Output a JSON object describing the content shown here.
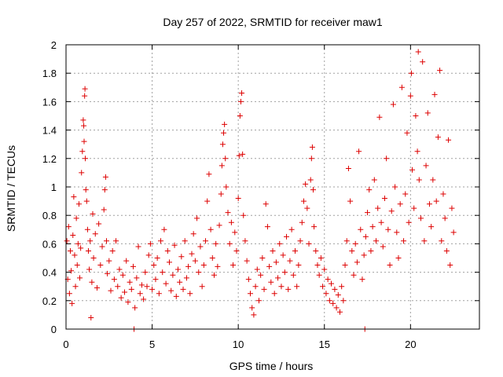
{
  "chart_data": {
    "type": "scatter",
    "title": "Day 257 of 2022, SRMTID for receiver maw1",
    "xlabel": "GPS time / hours",
    "ylabel": "SRMTID / TECUs",
    "xlim": [
      0,
      24
    ],
    "ylim": [
      0,
      2
    ],
    "xticks": [
      "0",
      "5",
      "10",
      "15",
      "20"
    ],
    "yticks": [
      "0",
      "0.2",
      "0.4",
      "0.6",
      "0.8",
      "1",
      "1.2",
      "1.4",
      "1.6",
      "1.8",
      "2"
    ],
    "grid": true,
    "marker": "plus",
    "color": "#dd0000",
    "series": [
      {
        "name": "maw1",
        "points": [
          [
            0.05,
            0.62
          ],
          [
            0.1,
            0.35
          ],
          [
            0.15,
            0.72
          ],
          [
            0.2,
            0.25
          ],
          [
            0.25,
            0.55
          ],
          [
            0.3,
            0.41
          ],
          [
            0.35,
            0.18
          ],
          [
            0.4,
            0.66
          ],
          [
            0.45,
            0.93
          ],
          [
            0.5,
            0.52
          ],
          [
            0.55,
            0.3
          ],
          [
            0.6,
            0.78
          ],
          [
            0.65,
            0.45
          ],
          [
            0.7,
            0.6
          ],
          [
            0.75,
            0.88
          ],
          [
            0.8,
            0.36
          ],
          [
            0.85,
            0.57
          ],
          [
            0.9,
            1.1
          ],
          [
            0.95,
            1.25
          ],
          [
            1.0,
            1.47
          ],
          [
            1.03,
            1.43
          ],
          [
            1.05,
            1.32
          ],
          [
            1.08,
            1.64
          ],
          [
            1.1,
            1.69
          ],
          [
            1.12,
            1.2
          ],
          [
            1.15,
            0.98
          ],
          [
            1.2,
            0.9
          ],
          [
            1.25,
            0.7
          ],
          [
            1.3,
            0.55
          ],
          [
            1.35,
            0.42
          ],
          [
            1.4,
            0.62
          ],
          [
            1.45,
            0.08
          ],
          [
            1.5,
            0.33
          ],
          [
            1.55,
            0.81
          ],
          [
            1.6,
            0.5
          ],
          [
            1.7,
            0.67
          ],
          [
            1.8,
            0.29
          ],
          [
            1.9,
            0.74
          ],
          [
            2.0,
            0.45
          ],
          [
            2.1,
            0.58
          ],
          [
            2.2,
            0.84
          ],
          [
            2.25,
            0.98
          ],
          [
            2.3,
            1.07
          ],
          [
            2.35,
            0.62
          ],
          [
            2.4,
            0.39
          ],
          [
            2.5,
            0.48
          ],
          [
            2.6,
            0.27
          ],
          [
            2.7,
            0.55
          ],
          [
            2.8,
            0.35
          ],
          [
            2.9,
            0.62
          ],
          [
            3.0,
            0.3
          ],
          [
            3.1,
            0.42
          ],
          [
            3.2,
            0.22
          ],
          [
            3.3,
            0.38
          ],
          [
            3.4,
            0.26
          ],
          [
            3.5,
            0.48
          ],
          [
            3.6,
            0.19
          ],
          [
            3.7,
            0.33
          ],
          [
            3.8,
            0.28
          ],
          [
            3.9,
            0.44
          ],
          [
            3.95,
            0.0
          ],
          [
            4.0,
            0.15
          ],
          [
            4.1,
            0.36
          ],
          [
            4.2,
            0.58
          ],
          [
            4.3,
            0.25
          ],
          [
            4.4,
            0.31
          ],
          [
            4.5,
            0.21
          ],
          [
            4.6,
            0.4
          ],
          [
            4.7,
            0.3
          ],
          [
            4.8,
            0.52
          ],
          [
            4.9,
            0.6
          ],
          [
            5.0,
            0.28
          ],
          [
            5.1,
            0.45
          ],
          [
            5.2,
            0.35
          ],
          [
            5.3,
            0.5
          ],
          [
            5.4,
            0.25
          ],
          [
            5.5,
            0.62
          ],
          [
            5.6,
            0.4
          ],
          [
            5.7,
            0.7
          ],
          [
            5.8,
            0.32
          ],
          [
            5.9,
            0.55
          ],
          [
            6.0,
            0.47
          ],
          [
            6.1,
            0.27
          ],
          [
            6.2,
            0.38
          ],
          [
            6.3,
            0.59
          ],
          [
            6.4,
            0.23
          ],
          [
            6.5,
            0.42
          ],
          [
            6.6,
            0.33
          ],
          [
            6.7,
            0.51
          ],
          [
            6.8,
            0.28
          ],
          [
            6.9,
            0.62
          ],
          [
            7.0,
            0.36
          ],
          [
            7.1,
            0.44
          ],
          [
            7.2,
            0.25
          ],
          [
            7.3,
            0.53
          ],
          [
            7.4,
            0.67
          ],
          [
            7.5,
            0.48
          ],
          [
            7.6,
            0.78
          ],
          [
            7.7,
            0.4
          ],
          [
            7.8,
            0.58
          ],
          [
            7.9,
            0.3
          ],
          [
            8.0,
            0.45
          ],
          [
            8.1,
            0.62
          ],
          [
            8.2,
            0.9
          ],
          [
            8.3,
            1.09
          ],
          [
            8.4,
            0.7
          ],
          [
            8.5,
            0.5
          ],
          [
            8.6,
            0.38
          ],
          [
            8.7,
            0.6
          ],
          [
            8.8,
            0.44
          ],
          [
            8.9,
            0.73
          ],
          [
            9.0,
            0.95
          ],
          [
            9.05,
            1.15
          ],
          [
            9.1,
            1.3
          ],
          [
            9.15,
            1.38
          ],
          [
            9.2,
            1.44
          ],
          [
            9.25,
            1.2
          ],
          [
            9.3,
            1.0
          ],
          [
            9.4,
            0.82
          ],
          [
            9.5,
            0.6
          ],
          [
            9.6,
            0.75
          ],
          [
            9.7,
            0.45
          ],
          [
            9.8,
            0.68
          ],
          [
            9.9,
            0.55
          ],
          [
            10.0,
            0.92
          ],
          [
            10.05,
            1.22
          ],
          [
            10.1,
            1.5
          ],
          [
            10.15,
            1.6
          ],
          [
            10.2,
            1.66
          ],
          [
            10.25,
            1.23
          ],
          [
            10.3,
            0.8
          ],
          [
            10.4,
            0.62
          ],
          [
            10.5,
            0.48
          ],
          [
            10.6,
            0.35
          ],
          [
            10.7,
            0.25
          ],
          [
            10.8,
            0.15
          ],
          [
            10.9,
            0.1
          ],
          [
            11.0,
            0.3
          ],
          [
            11.1,
            0.42
          ],
          [
            11.2,
            0.2
          ],
          [
            11.3,
            0.38
          ],
          [
            11.4,
            0.5
          ],
          [
            11.5,
            0.28
          ],
          [
            11.6,
            0.88
          ],
          [
            11.7,
            0.72
          ],
          [
            11.8,
            0.44
          ],
          [
            11.9,
            0.33
          ],
          [
            12.0,
            0.55
          ],
          [
            12.1,
            0.25
          ],
          [
            12.2,
            0.47
          ],
          [
            12.3,
            0.36
          ],
          [
            12.4,
            0.6
          ],
          [
            12.5,
            0.3
          ],
          [
            12.6,
            0.52
          ],
          [
            12.7,
            0.4
          ],
          [
            12.8,
            0.65
          ],
          [
            12.9,
            0.28
          ],
          [
            13.0,
            0.48
          ],
          [
            13.1,
            0.7
          ],
          [
            13.2,
            0.38
          ],
          [
            13.3,
            0.55
          ],
          [
            13.4,
            0.3
          ],
          [
            13.5,
            0.45
          ],
          [
            13.6,
            0.62
          ],
          [
            13.7,
            0.75
          ],
          [
            13.8,
            0.9
          ],
          [
            13.9,
            1.02
          ],
          [
            14.0,
            0.85
          ],
          [
            14.1,
            0.6
          ],
          [
            14.2,
            1.05
          ],
          [
            14.25,
            1.2
          ],
          [
            14.3,
            1.28
          ],
          [
            14.35,
            0.98
          ],
          [
            14.4,
            0.72
          ],
          [
            14.5,
            0.55
          ],
          [
            14.6,
            0.45
          ],
          [
            14.7,
            0.38
          ],
          [
            14.8,
            0.5
          ],
          [
            14.9,
            0.3
          ],
          [
            15.0,
            0.42
          ],
          [
            15.1,
            0.25
          ],
          [
            15.2,
            0.35
          ],
          [
            15.3,
            0.2
          ],
          [
            15.4,
            0.32
          ],
          [
            15.5,
            0.18
          ],
          [
            15.6,
            0.28
          ],
          [
            15.7,
            0.15
          ],
          [
            15.8,
            0.24
          ],
          [
            15.9,
            0.12
          ],
          [
            16.0,
            0.3
          ],
          [
            16.1,
            0.2
          ],
          [
            16.2,
            0.45
          ],
          [
            16.3,
            0.62
          ],
          [
            16.4,
            1.13
          ],
          [
            16.5,
            0.9
          ],
          [
            16.6,
            0.55
          ],
          [
            16.7,
            0.38
          ],
          [
            16.8,
            0.6
          ],
          [
            16.9,
            0.47
          ],
          [
            17.0,
            1.25
          ],
          [
            17.1,
            0.7
          ],
          [
            17.2,
            0.35
          ],
          [
            17.3,
            0.52
          ],
          [
            17.35,
            0.0
          ],
          [
            17.4,
            0.65
          ],
          [
            17.5,
            0.82
          ],
          [
            17.6,
            0.98
          ],
          [
            17.7,
            0.55
          ],
          [
            17.8,
            0.72
          ],
          [
            17.9,
            1.05
          ],
          [
            18.0,
            0.62
          ],
          [
            18.1,
            0.85
          ],
          [
            18.2,
            1.49
          ],
          [
            18.3,
            0.75
          ],
          [
            18.4,
            0.58
          ],
          [
            18.5,
            0.92
          ],
          [
            18.6,
            1.2
          ],
          [
            18.7,
            0.7
          ],
          [
            18.8,
            0.45
          ],
          [
            18.9,
            0.83
          ],
          [
            19.0,
            1.58
          ],
          [
            19.1,
            1.0
          ],
          [
            19.2,
            0.68
          ],
          [
            19.3,
            0.5
          ],
          [
            19.4,
            0.88
          ],
          [
            19.5,
            1.7
          ],
          [
            19.6,
            0.62
          ],
          [
            19.7,
            0.95
          ],
          [
            19.8,
            1.38
          ],
          [
            19.9,
            0.75
          ],
          [
            20.0,
            1.64
          ],
          [
            20.05,
            1.8
          ],
          [
            20.1,
            1.12
          ],
          [
            20.2,
            0.85
          ],
          [
            20.3,
            1.5
          ],
          [
            20.4,
            1.25
          ],
          [
            20.45,
            1.95
          ],
          [
            20.5,
            1.05
          ],
          [
            20.6,
            0.78
          ],
          [
            20.7,
            1.88
          ],
          [
            20.8,
            0.62
          ],
          [
            20.9,
            1.15
          ],
          [
            21.0,
            1.52
          ],
          [
            21.1,
            0.88
          ],
          [
            21.2,
            0.72
          ],
          [
            21.3,
            1.05
          ],
          [
            21.4,
            1.65
          ],
          [
            21.5,
            0.9
          ],
          [
            21.6,
            1.35
          ],
          [
            21.7,
            1.82
          ],
          [
            21.8,
            0.62
          ],
          [
            21.9,
            0.95
          ],
          [
            22.0,
            0.78
          ],
          [
            22.1,
            0.55
          ],
          [
            22.2,
            1.33
          ],
          [
            22.3,
            0.45
          ],
          [
            22.4,
            0.85
          ],
          [
            22.5,
            0.68
          ]
        ]
      }
    ]
  }
}
